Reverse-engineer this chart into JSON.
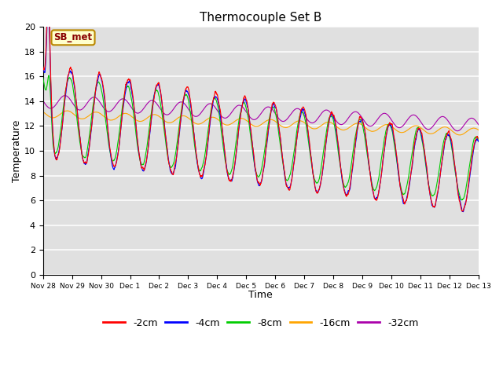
{
  "title": "Thermocouple Set B",
  "xlabel": "Time",
  "ylabel": "Temperature",
  "ylim": [
    0,
    20
  ],
  "yticks": [
    0,
    2,
    4,
    6,
    8,
    10,
    12,
    14,
    16,
    18,
    20
  ],
  "colors": {
    "-2cm": "#ff0000",
    "-4cm": "#0000ff",
    "-8cm": "#00cc00",
    "-16cm": "#ffa500",
    "-32cm": "#aa00aa"
  },
  "annotation_label": "SB_met",
  "annotation_bg": "#ffffcc",
  "annotation_border": "#bb8800",
  "annotation_text_color": "#880000",
  "plot_bg": "#e0e0e0",
  "x_tick_labels": [
    "Nov 28",
    "Nov 29",
    "Nov 30",
    "Dec 1",
    "Dec 2",
    "Dec 3",
    "Dec 4",
    "Dec 5",
    "Dec 6",
    "Dec 7",
    "Dec 8",
    "Dec 9",
    "Dec 10",
    "Dec 11",
    "Dec 12",
    "Dec 13"
  ],
  "num_days": 15
}
